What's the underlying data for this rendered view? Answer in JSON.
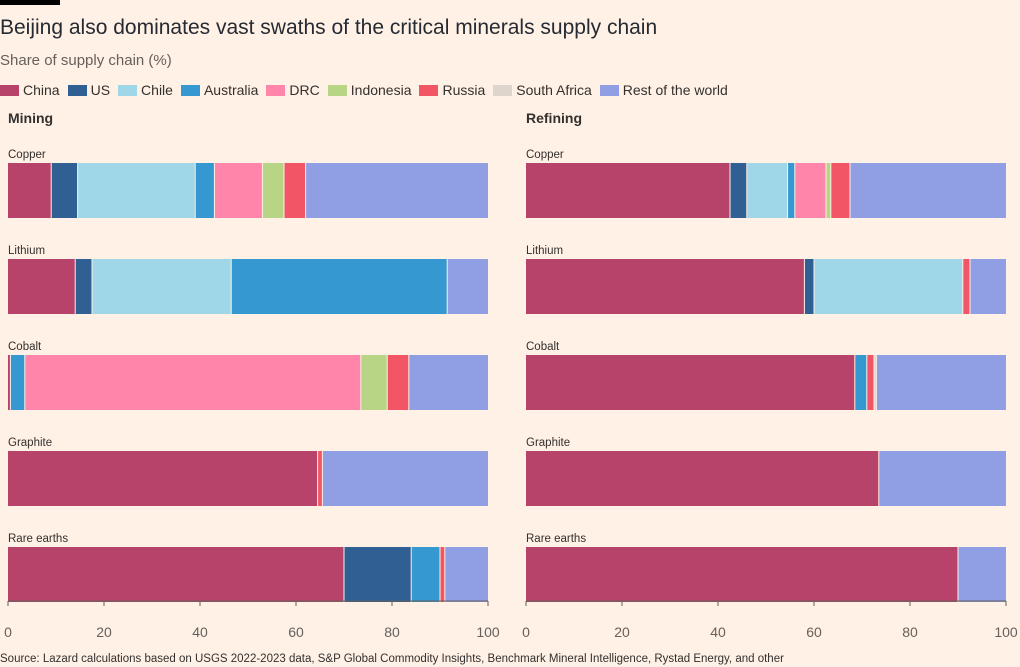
{
  "title": "Beijing also dominates vast swaths of the critical minerals supply chain",
  "subtitle": "Share of supply chain (%)",
  "source": "Source: Lazard calculations based on USGS 2022-2023 data, S&P Global Commodity Insights, Benchmark Mineral Intelligence, Rystad Energy, and other",
  "legend": [
    {
      "name": "China",
      "color": "#b8436a"
    },
    {
      "name": "US",
      "color": "#2f5f93"
    },
    {
      "name": "Chile",
      "color": "#9fd7e8"
    },
    {
      "name": "Australia",
      "color": "#3598d1"
    },
    {
      "name": "DRC",
      "color": "#ff85ab"
    },
    {
      "name": "Indonesia",
      "color": "#b7d584"
    },
    {
      "name": "Russia",
      "color": "#f25666"
    },
    {
      "name": "South Africa",
      "color": "#ded5cd"
    },
    {
      "name": "Rest of the world",
      "color": "#909ee4"
    }
  ],
  "chart_data": [
    {
      "type": "bar",
      "orientation": "horizontal",
      "stacked": true,
      "title": "Mining",
      "categories": [
        "Copper",
        "Lithium",
        "Cobalt",
        "Graphite",
        "Rare earths"
      ],
      "xlim": [
        0,
        100
      ],
      "xticks": [
        0,
        20,
        40,
        60,
        80,
        100
      ],
      "grid": false,
      "series": [
        {
          "name": "China",
          "values": [
            9,
            14,
            0.5,
            64.5,
            70
          ]
        },
        {
          "name": "US",
          "values": [
            5.5,
            3.5,
            0,
            0,
            14
          ]
        },
        {
          "name": "Chile",
          "values": [
            24.5,
            29,
            0,
            0,
            0
          ]
        },
        {
          "name": "Australia",
          "values": [
            4,
            45,
            3,
            0,
            6
          ]
        },
        {
          "name": "DRC",
          "values": [
            10,
            0,
            70,
            0,
            0
          ]
        },
        {
          "name": "Indonesia",
          "values": [
            4.5,
            0,
            5.5,
            0,
            0
          ]
        },
        {
          "name": "Russia",
          "values": [
            4.5,
            0,
            4.5,
            1,
            1
          ]
        },
        {
          "name": "South Africa",
          "values": [
            0,
            0,
            0,
            0,
            0
          ]
        },
        {
          "name": "Rest of the world",
          "values": [
            38,
            8.5,
            16.5,
            34.5,
            9
          ]
        }
      ]
    },
    {
      "type": "bar",
      "orientation": "horizontal",
      "stacked": true,
      "title": "Refining",
      "categories": [
        "Copper",
        "Lithium",
        "Cobalt",
        "Graphite",
        "Rare earths"
      ],
      "xlim": [
        0,
        100
      ],
      "xticks": [
        0,
        20,
        40,
        60,
        80,
        100
      ],
      "grid": false,
      "series": [
        {
          "name": "China",
          "values": [
            42.5,
            58,
            68.5,
            73.5,
            90
          ]
        },
        {
          "name": "US",
          "values": [
            3.5,
            2,
            0,
            0,
            0
          ]
        },
        {
          "name": "Chile",
          "values": [
            8.5,
            31,
            0,
            0,
            0
          ]
        },
        {
          "name": "Australia",
          "values": [
            1.5,
            0,
            2.5,
            0,
            0
          ]
        },
        {
          "name": "DRC",
          "values": [
            6.5,
            0,
            0,
            0,
            0
          ]
        },
        {
          "name": "Indonesia",
          "values": [
            1,
            0,
            0,
            0,
            0
          ]
        },
        {
          "name": "Russia",
          "values": [
            4,
            1.5,
            1.5,
            0,
            0
          ]
        },
        {
          "name": "South Africa",
          "values": [
            0,
            0,
            0.5,
            0,
            0
          ]
        },
        {
          "name": "Rest of the world",
          "values": [
            32.5,
            7.5,
            27,
            26.5,
            10
          ]
        }
      ]
    }
  ]
}
